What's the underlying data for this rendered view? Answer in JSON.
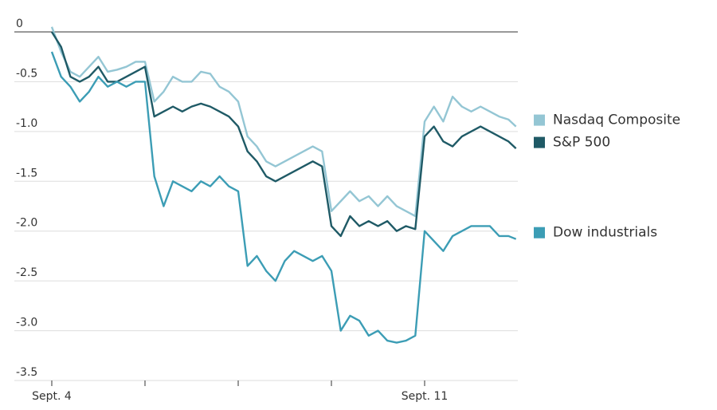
{
  "chart_data": {
    "type": "line",
    "x": [
      0,
      0.1,
      0.2,
      0.3,
      0.4,
      0.5,
      0.6,
      0.7,
      0.8,
      0.9,
      1.0,
      1.1,
      1.2,
      1.3,
      1.4,
      1.5,
      1.6,
      1.7,
      1.8,
      1.9,
      2.0,
      2.1,
      2.2,
      2.3,
      2.4,
      2.5,
      2.6,
      2.7,
      2.8,
      2.9,
      3.0,
      3.1,
      3.2,
      3.3,
      3.4,
      3.5,
      3.6,
      3.7,
      3.8,
      3.9,
      4.0,
      4.1,
      4.2,
      4.3,
      4.4,
      4.5,
      4.6,
      4.7,
      4.8,
      4.9,
      4.98
    ],
    "series": [
      {
        "name": "Nasdaq Composite",
        "color": "#94c6d4",
        "values": [
          0.05,
          -0.2,
          -0.4,
          -0.45,
          -0.35,
          -0.25,
          -0.4,
          -0.38,
          -0.35,
          -0.3,
          -0.3,
          -0.7,
          -0.6,
          -0.45,
          -0.5,
          -0.5,
          -0.4,
          -0.42,
          -0.55,
          -0.6,
          -0.7,
          -1.05,
          -1.15,
          -1.3,
          -1.35,
          -1.3,
          -1.25,
          -1.2,
          -1.15,
          -1.2,
          -1.8,
          -1.7,
          -1.6,
          -1.7,
          -1.65,
          -1.75,
          -1.65,
          -1.75,
          -1.8,
          -1.85,
          -0.9,
          -0.75,
          -0.9,
          -0.65,
          -0.75,
          -0.8,
          -0.75,
          -0.8,
          -0.85,
          -0.88,
          -0.95
        ]
      },
      {
        "name": "S&P 500",
        "color": "#1f5a66",
        "values": [
          0,
          -0.15,
          -0.45,
          -0.5,
          -0.45,
          -0.35,
          -0.5,
          -0.5,
          -0.45,
          -0.4,
          -0.35,
          -0.85,
          -0.8,
          -0.75,
          -0.8,
          -0.75,
          -0.72,
          -0.75,
          -0.8,
          -0.85,
          -0.95,
          -1.2,
          -1.3,
          -1.45,
          -1.5,
          -1.45,
          -1.4,
          -1.35,
          -1.3,
          -1.35,
          -1.95,
          -2.05,
          -1.85,
          -1.95,
          -1.9,
          -1.95,
          -1.9,
          -2.0,
          -1.95,
          -1.98,
          -1.05,
          -0.95,
          -1.1,
          -1.15,
          -1.05,
          -1.0,
          -0.95,
          -1.0,
          -1.05,
          -1.1,
          -1.17
        ]
      },
      {
        "name": "Dow industrials",
        "color": "#3c9db5",
        "values": [
          -0.2,
          -0.45,
          -0.55,
          -0.7,
          -0.6,
          -0.45,
          -0.55,
          -0.5,
          -0.55,
          -0.5,
          -0.5,
          -1.45,
          -1.75,
          -1.5,
          -1.55,
          -1.6,
          -1.5,
          -1.55,
          -1.45,
          -1.55,
          -1.6,
          -2.35,
          -2.25,
          -2.4,
          -2.5,
          -2.3,
          -2.2,
          -2.25,
          -2.3,
          -2.25,
          -2.4,
          -3.0,
          -2.85,
          -2.9,
          -3.05,
          -3.0,
          -3.1,
          -3.12,
          -3.1,
          -3.05,
          -2.0,
          -2.1,
          -2.2,
          -2.05,
          -2.0,
          -1.95,
          -1.95,
          -1.95,
          -2.05,
          -2.05,
          -2.08
        ]
      }
    ],
    "xlim": [
      0,
      5
    ],
    "xticks": [
      {
        "value": 0,
        "label": "Sept. 4"
      },
      {
        "value": 1,
        "label": null
      },
      {
        "value": 2,
        "label": null
      },
      {
        "value": 3,
        "label": null
      },
      {
        "value": 4,
        "label": "Sept. 11"
      }
    ],
    "ylim": [
      -3.5,
      0.2
    ],
    "yticks": [
      0,
      -0.5,
      {
        "value": -1,
        "label": "-1.0"
      },
      -1.5,
      {
        "value": -2,
        "label": "-2.0"
      },
      -2.5,
      {
        "value": -3,
        "label": "-3.0"
      },
      -3.5
    ],
    "grid": true,
    "legend": "right"
  }
}
